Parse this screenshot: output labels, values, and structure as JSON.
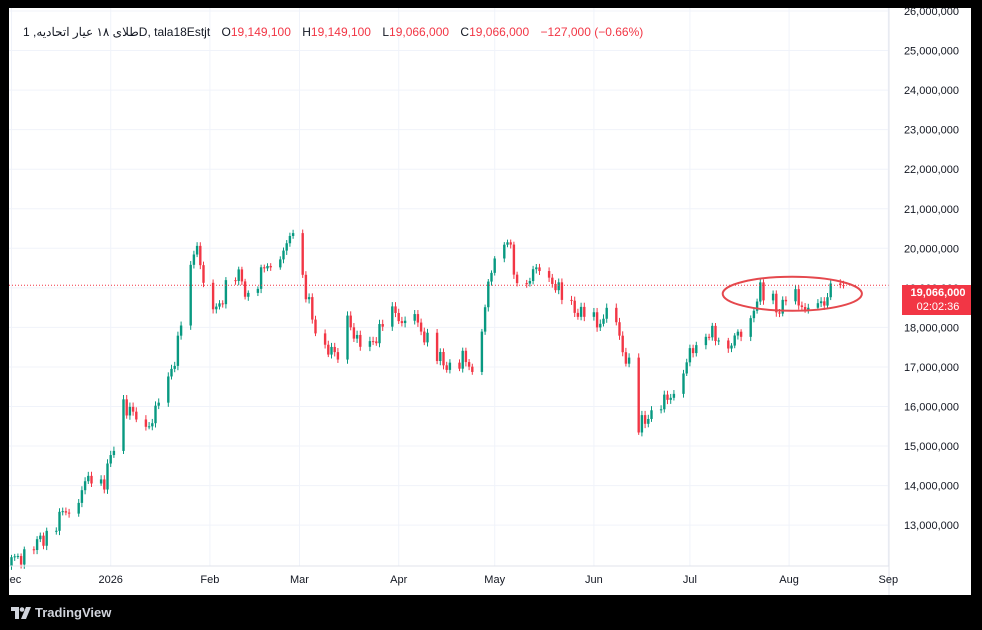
{
  "legend": {
    "symbol": "طلای ۱۸ عیار اتحادیه, 1D, tala18Estjt",
    "open_label": "O",
    "open": "19,149,100",
    "high_label": "H",
    "high": "19,149,100",
    "low_label": "L",
    "low": "19,066,000",
    "close_label": "C",
    "close": "19,066,000",
    "change": "−127,000 (−0.66%)"
  },
  "last_price": {
    "value": "19,066,000",
    "countdown": "02:02:36"
  },
  "brand": {
    "name": "TradingView",
    "icon": "tradingview-logo-icon"
  },
  "colors": {
    "up": "#089981",
    "down": "#f23645",
    "grid": "#f0f3fa",
    "annotation": "#e5484d"
  },
  "chart_data": {
    "type": "candlestick",
    "title": "طلای ۱۸ عیار اتحادیه, 1D, tala18Estjt",
    "y_axis": {
      "position": "right",
      "range": [
        11900000,
        26050000
      ],
      "ticks": [
        "26,000,000",
        "25,000,000",
        "24,000,000",
        "23,000,000",
        "22,000,000",
        "21,000,000",
        "20,000,000",
        "19,000,000",
        "18,000,000",
        "17,000,000",
        "16,000,000",
        "15,000,000",
        "14,000,000",
        "13,000,000"
      ],
      "tick_values": [
        26000000,
        25000000,
        24000000,
        23000000,
        22000000,
        21000000,
        20000000,
        19000000,
        18000000,
        17000000,
        16000000,
        15000000,
        14000000,
        13000000
      ]
    },
    "x_axis": {
      "labels": [
        "Dec",
        "2026",
        "Feb",
        "Mar",
        "Apr",
        "May",
        "Jun",
        "Jul",
        "Aug",
        "Sep"
      ],
      "label_days": [
        0,
        31,
        62,
        90,
        121,
        151,
        182,
        212,
        243,
        274
      ]
    },
    "last_close": 19066000,
    "anchors": [
      [
        0,
        12100000
      ],
      [
        5,
        12300000
      ],
      [
        10,
        12700000
      ],
      [
        15,
        13200000
      ],
      [
        20,
        13600000
      ],
      [
        25,
        14300000
      ],
      [
        29,
        14100000
      ],
      [
        32,
        15000000
      ],
      [
        35,
        16100000
      ],
      [
        38,
        15800000
      ],
      [
        41,
        15300000
      ],
      [
        44,
        15700000
      ],
      [
        47,
        16200000
      ],
      [
        50,
        16900000
      ],
      [
        53,
        18000000
      ],
      [
        56,
        19400000
      ],
      [
        58,
        20200000
      ],
      [
        60,
        19000000
      ],
      [
        62,
        18200000
      ],
      [
        65,
        18600000
      ],
      [
        68,
        19200000
      ],
      [
        71,
        19300000
      ],
      [
        74,
        18800000
      ],
      [
        77,
        19200000
      ],
      [
        80,
        19600000
      ],
      [
        83,
        19800000
      ],
      [
        86,
        20000000
      ],
      [
        88,
        20600000
      ],
      [
        90,
        19800000
      ],
      [
        92,
        18900000
      ],
      [
        94,
        18200000
      ],
      [
        96,
        17700000
      ],
      [
        99,
        17500000
      ],
      [
        102,
        17200000
      ],
      [
        105,
        18300000
      ],
      [
        108,
        17600000
      ],
      [
        111,
        17400000
      ],
      [
        114,
        17800000
      ],
      [
        117,
        18100000
      ],
      [
        120,
        18400000
      ],
      [
        123,
        18000000
      ],
      [
        126,
        18200000
      ],
      [
        129,
        17800000
      ],
      [
        132,
        17300000
      ],
      [
        135,
        17100000
      ],
      [
        138,
        17000000
      ],
      [
        141,
        17200000
      ],
      [
        144,
        17000000
      ],
      [
        147,
        18000000
      ],
      [
        149,
        19000000
      ],
      [
        151,
        19900000
      ],
      [
        153,
        20000000
      ],
      [
        155,
        20300000
      ],
      [
        157,
        19400000
      ],
      [
        159,
        19000000
      ],
      [
        162,
        19300000
      ],
      [
        165,
        19500000
      ],
      [
        168,
        19300000
      ],
      [
        171,
        18900000
      ],
      [
        174,
        18600000
      ],
      [
        177,
        18400000
      ],
      [
        180,
        18200000
      ],
      [
        183,
        18100000
      ],
      [
        186,
        18300000
      ],
      [
        189,
        18000000
      ],
      [
        192,
        17200000
      ],
      [
        194,
        16800000
      ],
      [
        196,
        15400000
      ],
      [
        198,
        15700000
      ],
      [
        201,
        15900000
      ],
      [
        204,
        16100000
      ],
      [
        207,
        16400000
      ],
      [
        210,
        16900000
      ],
      [
        213,
        17500000
      ],
      [
        216,
        17900000
      ],
      [
        219,
        17800000
      ],
      [
        222,
        17700000
      ],
      [
        225,
        17600000
      ],
      [
        228,
        17900000
      ],
      [
        231,
        18300000
      ],
      [
        234,
        18900000
      ],
      [
        236,
        18800000
      ],
      [
        238,
        18700000
      ],
      [
        240,
        18400000
      ],
      [
        243,
        18800000
      ],
      [
        246,
        18700000
      ],
      [
        249,
        18300000
      ],
      [
        252,
        18500000
      ],
      [
        255,
        18800000
      ],
      [
        258,
        19100000
      ],
      [
        260,
        19066000
      ]
    ]
  },
  "annotation": {
    "shape": "ellipse",
    "around": "recent consolidation (Jul–Aug)"
  }
}
